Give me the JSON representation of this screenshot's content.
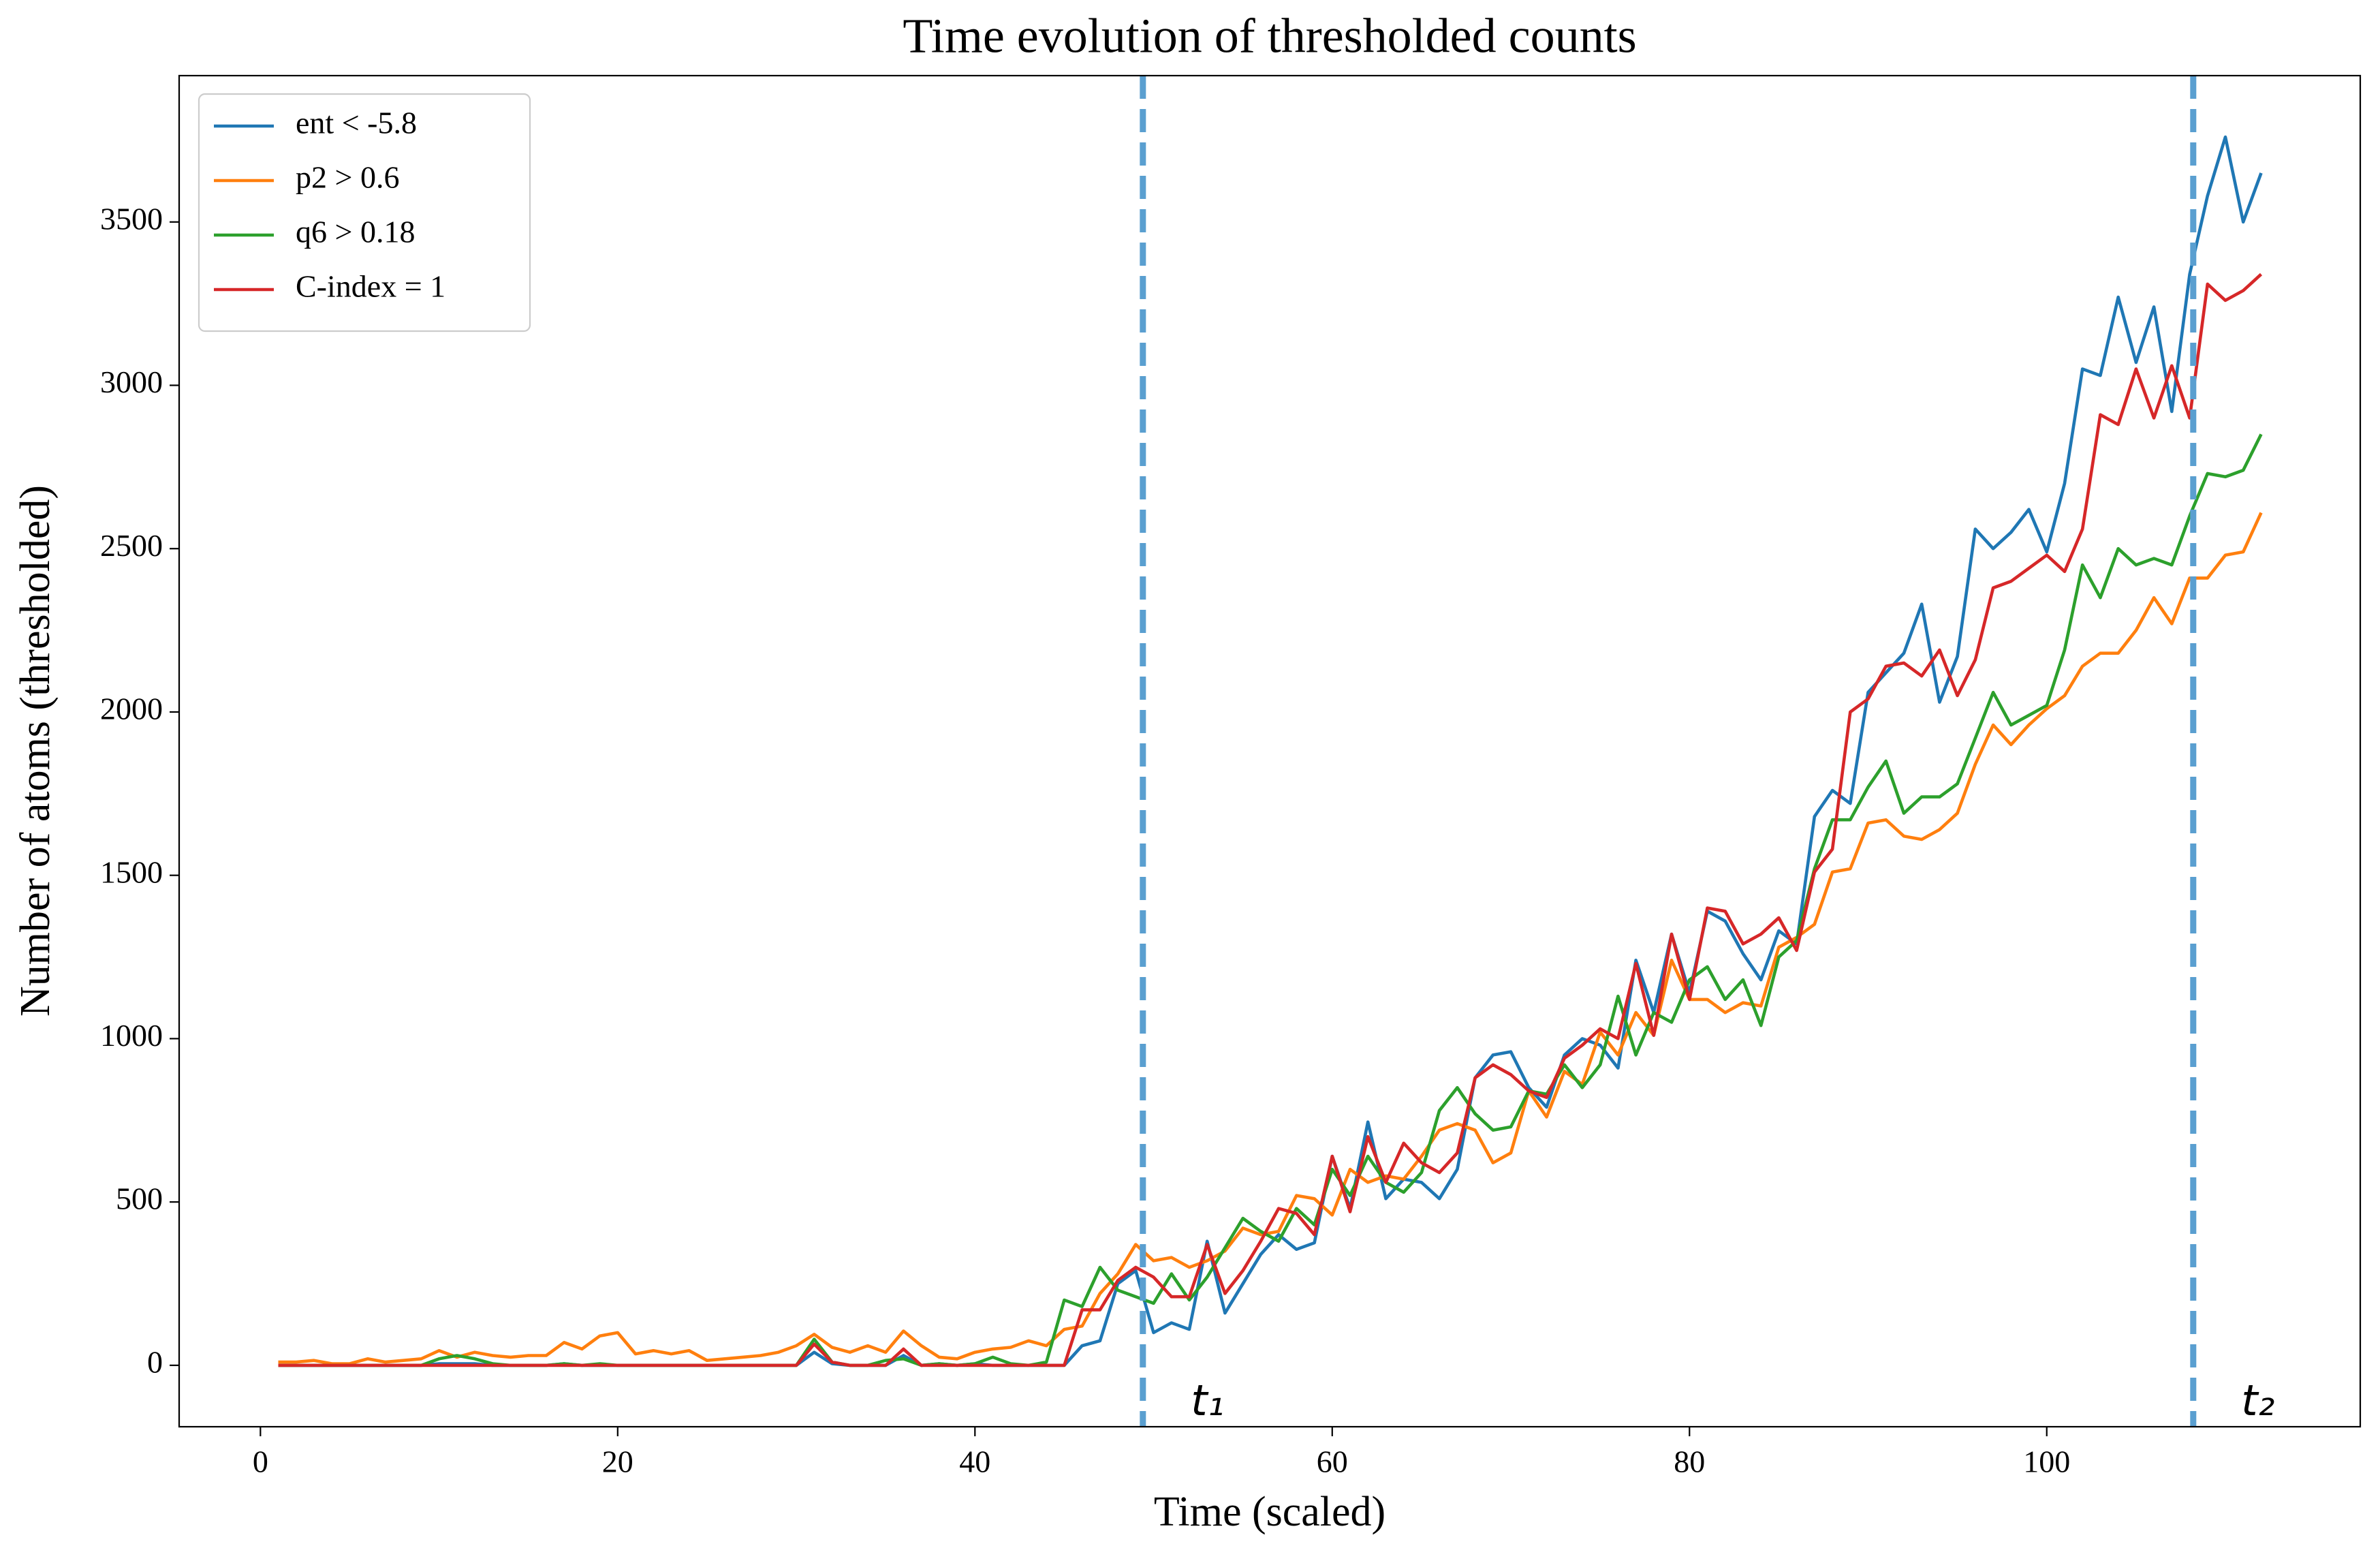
{
  "chart_data": {
    "type": "line",
    "title": "Time evolution of thresholded counts",
    "xlabel": "Time (scaled)",
    "ylabel": "Number of atoms (thresholded)",
    "x": [
      1,
      2,
      3,
      4,
      5,
      6,
      7,
      8,
      9,
      10,
      11,
      12,
      13,
      14,
      15,
      16,
      17,
      18,
      19,
      20,
      21,
      22,
      23,
      24,
      25,
      26,
      27,
      28,
      29,
      30,
      31,
      32,
      33,
      34,
      35,
      36,
      37,
      38,
      39,
      40,
      41,
      42,
      43,
      44,
      45,
      46,
      47,
      48,
      49,
      50,
      51,
      52,
      53,
      54,
      55,
      56,
      57,
      58,
      59,
      60,
      61,
      62,
      63,
      64,
      65,
      66,
      67,
      68,
      69,
      70,
      71,
      72,
      73,
      74,
      75,
      76,
      77,
      78,
      79,
      80,
      81,
      82,
      83,
      84,
      85,
      86,
      87,
      88,
      89,
      90,
      91,
      92,
      93,
      94,
      95,
      96,
      97,
      98,
      99,
      100,
      101,
      102,
      103,
      104,
      105,
      106,
      107,
      108,
      109,
      110,
      111,
      112
    ],
    "series": [
      {
        "name": "ent < -5.8",
        "color": "#1f77b4",
        "values": [
          0,
          0,
          0,
          0,
          0,
          0,
          0,
          0,
          0,
          5,
          5,
          5,
          0,
          0,
          0,
          0,
          5,
          0,
          0,
          0,
          0,
          0,
          0,
          0,
          0,
          0,
          0,
          0,
          0,
          0,
          40,
          5,
          0,
          0,
          0,
          30,
          0,
          5,
          0,
          5,
          0,
          0,
          0,
          0,
          0,
          60,
          75,
          250,
          290,
          100,
          130,
          110,
          380,
          160,
          250,
          340,
          400,
          355,
          375,
          640,
          480,
          745,
          510,
          570,
          560,
          510,
          600,
          880,
          950,
          960,
          850,
          790,
          950,
          1000,
          980,
          910,
          1240,
          1080,
          1320,
          1140,
          1390,
          1360,
          1260,
          1180,
          1330,
          1290,
          1680,
          1760,
          1720,
          2060,
          2120,
          2180,
          2330,
          2030,
          2170,
          2560,
          2500,
          2550,
          2620,
          2490,
          2700,
          3050,
          3030,
          3270,
          3070,
          3240,
          2920,
          3340,
          3580,
          3760,
          3500,
          3650
        ]
      },
      {
        "name": "p2 > 0.6",
        "color": "#ff7f0e",
        "values": [
          10,
          10,
          15,
          5,
          5,
          20,
          10,
          15,
          20,
          45,
          25,
          40,
          30,
          25,
          30,
          30,
          70,
          50,
          90,
          100,
          35,
          45,
          35,
          45,
          15,
          20,
          25,
          30,
          40,
          60,
          95,
          55,
          40,
          60,
          40,
          105,
          60,
          25,
          20,
          40,
          50,
          55,
          75,
          60,
          110,
          120,
          220,
          280,
          370,
          320,
          330,
          300,
          320,
          350,
          420,
          400,
          410,
          520,
          510,
          460,
          600,
          560,
          580,
          570,
          640,
          720,
          740,
          720,
          620,
          650,
          840,
          760,
          900,
          860,
          1020,
          950,
          1080,
          1010,
          1240,
          1120,
          1120,
          1080,
          1110,
          1100,
          1280,
          1310,
          1350,
          1510,
          1520,
          1660,
          1670,
          1620,
          1610,
          1640,
          1690,
          1840,
          1960,
          1900,
          1960,
          2010,
          2050,
          2140,
          2180,
          2180,
          2250,
          2350,
          2270,
          2410,
          2410,
          2480,
          2490,
          2610
        ]
      },
      {
        "name": "q6 > 0.18",
        "color": "#2ca02c",
        "values": [
          0,
          0,
          0,
          0,
          0,
          0,
          0,
          0,
          0,
          20,
          30,
          20,
          5,
          0,
          0,
          0,
          5,
          0,
          5,
          0,
          0,
          0,
          0,
          0,
          0,
          0,
          0,
          0,
          0,
          0,
          80,
          10,
          0,
          0,
          15,
          20,
          0,
          5,
          0,
          5,
          25,
          5,
          0,
          10,
          200,
          180,
          300,
          230,
          210,
          190,
          280,
          200,
          270,
          360,
          450,
          410,
          380,
          480,
          430,
          600,
          520,
          640,
          560,
          530,
          590,
          780,
          850,
          770,
          720,
          730,
          840,
          830,
          920,
          850,
          920,
          1130,
          950,
          1080,
          1050,
          1180,
          1220,
          1120,
          1180,
          1040,
          1250,
          1300,
          1520,
          1670,
          1670,
          1770,
          1850,
          1690,
          1740,
          1740,
          1780,
          1920,
          2060,
          1960,
          1990,
          2020,
          2190,
          2450,
          2350,
          2500,
          2450,
          2470,
          2450,
          2600,
          2730,
          2720,
          2740,
          2850
        ]
      },
      {
        "name": "C-index = 1",
        "color": "#d62728",
        "values": [
          0,
          0,
          0,
          0,
          0,
          0,
          0,
          0,
          0,
          0,
          0,
          0,
          0,
          0,
          0,
          0,
          0,
          0,
          0,
          0,
          0,
          0,
          0,
          0,
          0,
          0,
          0,
          0,
          0,
          0,
          65,
          10,
          0,
          0,
          0,
          50,
          0,
          0,
          0,
          0,
          0,
          0,
          0,
          0,
          0,
          170,
          170,
          260,
          300,
          270,
          210,
          210,
          370,
          220,
          290,
          380,
          480,
          465,
          400,
          640,
          470,
          700,
          560,
          680,
          620,
          590,
          650,
          880,
          920,
          890,
          840,
          820,
          940,
          980,
          1030,
          1000,
          1230,
          1010,
          1320,
          1120,
          1400,
          1390,
          1290,
          1320,
          1370,
          1270,
          1510,
          1580,
          2000,
          2040,
          2140,
          2150,
          2110,
          2190,
          2050,
          2160,
          2380,
          2400,
          2440,
          2480,
          2430,
          2560,
          2910,
          2880,
          3050,
          2900,
          3060,
          2900,
          3310,
          3260,
          3290,
          3340
        ]
      }
    ],
    "vlines": [
      {
        "x": 49.4,
        "label": "t₁",
        "color": "#5a9fd0"
      },
      {
        "x": 108.2,
        "label": "t₂",
        "color": "#5a9fd0"
      }
    ],
    "xlim": [
      -4.55,
      117.55
    ],
    "xticks": [
      0,
      20,
      40,
      60,
      80,
      100
    ],
    "ylim": [
      -188,
      3948
    ],
    "yticks": [
      0,
      500,
      1000,
      1500,
      2000,
      2500,
      3000,
      3500
    ],
    "legend": "upper left",
    "grid": false
  }
}
